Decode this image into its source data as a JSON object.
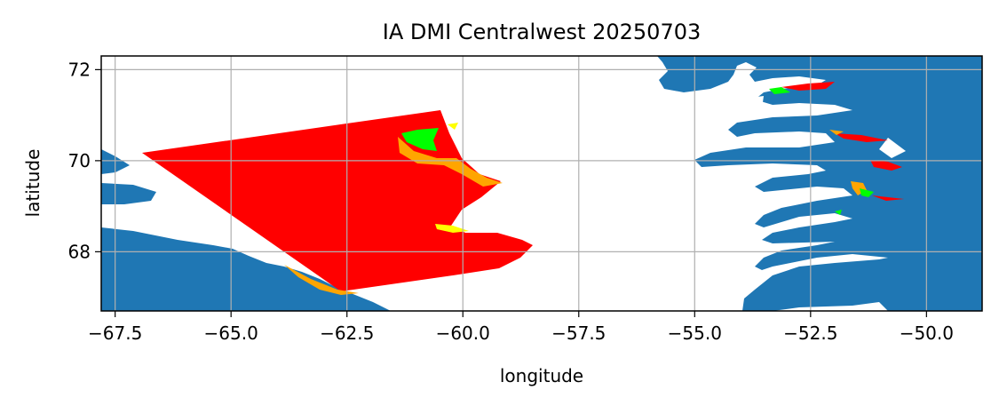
{
  "title": "IA DMI Centralwest 20250703",
  "xlabel": "longitude",
  "ylabel": "latitude",
  "x_ticks": [
    {
      "value": -67.5,
      "label": "−67.5"
    },
    {
      "value": -65.0,
      "label": "−65.0"
    },
    {
      "value": -62.5,
      "label": "−62.5"
    },
    {
      "value": -60.0,
      "label": "−60.0"
    },
    {
      "value": -57.5,
      "label": "−57.5"
    },
    {
      "value": -55.0,
      "label": "−55.0"
    },
    {
      "value": -52.5,
      "label": "−52.5"
    },
    {
      "value": -50.0,
      "label": "−50.0"
    }
  ],
  "y_ticks": [
    {
      "value": 68,
      "label": "68"
    },
    {
      "value": 70,
      "label": "70"
    },
    {
      "value": 72,
      "label": "72"
    }
  ],
  "map": {
    "xlim": [
      -67.8,
      -48.8
    ],
    "ylim": [
      66.7,
      72.3
    ],
    "grid": true,
    "colors": {
      "land": "#1f77b4",
      "sea": "#ffffff",
      "red": "#ff0000",
      "orange": "#ffa500",
      "green": "#00ff00",
      "yellow": "#ffff00",
      "grid": "#b0b0b0"
    }
  }
}
